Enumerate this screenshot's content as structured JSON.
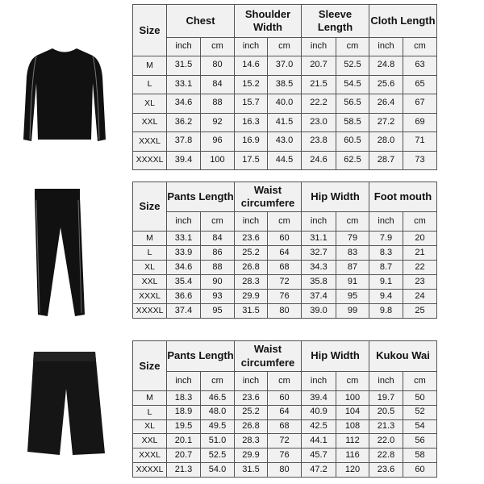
{
  "tables": [
    {
      "headers": [
        "Size",
        "Chest",
        "Shoulder Width",
        "Sleeve Length",
        "Cloth Length"
      ],
      "units": [
        "inch",
        "cm",
        "inch",
        "cm",
        "inch",
        "cm",
        "inch",
        "cm"
      ],
      "rows": [
        [
          "M",
          "31.5",
          "80",
          "14.6",
          "37.0",
          "20.7",
          "52.5",
          "24.8",
          "63"
        ],
        [
          "L",
          "33.1",
          "84",
          "15.2",
          "38.5",
          "21.5",
          "54.5",
          "25.6",
          "65"
        ],
        [
          "XL",
          "34.6",
          "88",
          "15.7",
          "40.0",
          "22.2",
          "56.5",
          "26.4",
          "67"
        ],
        [
          "XXL",
          "36.2",
          "92",
          "16.3",
          "41.5",
          "23.0",
          "58.5",
          "27.2",
          "69"
        ],
        [
          "XXXL",
          "37.8",
          "96",
          "16.9",
          "43.0",
          "23.8",
          "60.5",
          "28.0",
          "71"
        ],
        [
          "XXXXL",
          "39.4",
          "100",
          "17.5",
          "44.5",
          "24.6",
          "62.5",
          "28.7",
          "73"
        ]
      ]
    },
    {
      "headers": [
        "Size",
        "Pants Length",
        "Waist circumfere",
        "Hip Width",
        "Foot mouth"
      ],
      "units": [
        "inch",
        "cm",
        "inch",
        "cm",
        "inch",
        "cm",
        "inch",
        "cm"
      ],
      "rows": [
        [
          "M",
          "33.1",
          "84",
          "23.6",
          "60",
          "31.1",
          "79",
          "7.9",
          "20"
        ],
        [
          "L",
          "33.9",
          "86",
          "25.2",
          "64",
          "32.7",
          "83",
          "8.3",
          "21"
        ],
        [
          "XL",
          "34.6",
          "88",
          "26.8",
          "68",
          "34.3",
          "87",
          "8.7",
          "22"
        ],
        [
          "XXL",
          "35.4",
          "90",
          "28.3",
          "72",
          "35.8",
          "91",
          "9.1",
          "23"
        ],
        [
          "XXXL",
          "36.6",
          "93",
          "29.9",
          "76",
          "37.4",
          "95",
          "9.4",
          "24"
        ],
        [
          "XXXXL",
          "37.4",
          "95",
          "31.5",
          "80",
          "39.0",
          "99",
          "9.8",
          "25"
        ]
      ]
    },
    {
      "headers": [
        "Size",
        "Pants Length",
        "Waist circumfere",
        "Hip Width",
        "Kukou Wai"
      ],
      "units": [
        "inch",
        "cm",
        "inch",
        "cm",
        "inch",
        "cm",
        "inch",
        "cm"
      ],
      "rows": [
        [
          "M",
          "18.3",
          "46.5",
          "23.6",
          "60",
          "39.4",
          "100",
          "19.7",
          "50"
        ],
        [
          "L",
          "18.9",
          "48.0",
          "25.2",
          "64",
          "40.9",
          "104",
          "20.5",
          "52"
        ],
        [
          "XL",
          "19.5",
          "49.5",
          "26.8",
          "68",
          "42.5",
          "108",
          "21.3",
          "54"
        ],
        [
          "XXL",
          "20.1",
          "51.0",
          "28.3",
          "72",
          "44.1",
          "112",
          "22.0",
          "56"
        ],
        [
          "XXXL",
          "20.7",
          "52.5",
          "29.9",
          "76",
          "45.7",
          "116",
          "22.8",
          "58"
        ],
        [
          "XXXXL",
          "21.3",
          "54.0",
          "31.5",
          "80",
          "47.2",
          "120",
          "23.6",
          "60"
        ]
      ]
    }
  ]
}
